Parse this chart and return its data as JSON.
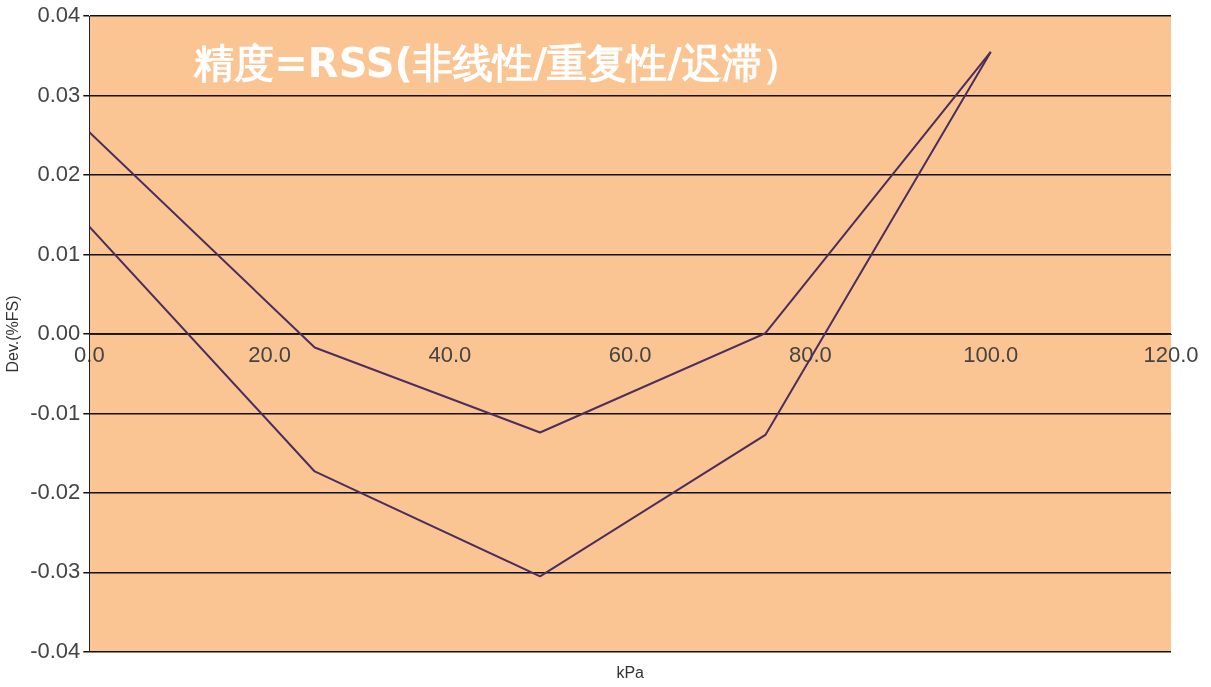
{
  "chart_data": {
    "type": "line",
    "title": "精度=RSS(非线性/重复性/迟滞）",
    "xlabel": "kPa",
    "ylabel": "Dev.(%FS)",
    "x": [
      0,
      25,
      50,
      75,
      100
    ],
    "series": [
      {
        "color": "#4b2d5e",
        "values": [
          0.0254,
          -0.0017,
          -0.0124,
          0.0001,
          0.0355
        ]
      },
      {
        "color": "#4b2d5e",
        "values": [
          0.0135,
          -0.0173,
          -0.0305,
          -0.0127,
          0.0355
        ]
      }
    ],
    "xlim": [
      0,
      120
    ],
    "xticks": [
      {
        "value": 0,
        "label": "0.0"
      },
      {
        "value": 20,
        "label": "20.0"
      },
      {
        "value": 40,
        "label": "40.0"
      },
      {
        "value": 60,
        "label": "60.0"
      },
      {
        "value": 80,
        "label": "80.0"
      },
      {
        "value": 100,
        "label": "100.0"
      },
      {
        "value": 120,
        "label": "120.0"
      }
    ],
    "ylim": [
      -0.04,
      0.04
    ],
    "yticks": [
      {
        "value": -0.04,
        "label": "-0.04"
      },
      {
        "value": -0.03,
        "label": "-0.03"
      },
      {
        "value": -0.02,
        "label": "-0.02"
      },
      {
        "value": -0.01,
        "label": "-0.01"
      },
      {
        "value": 0,
        "label": "0.00"
      },
      {
        "value": 0.01,
        "label": "0.01"
      },
      {
        "value": 0.02,
        "label": "0.02"
      },
      {
        "value": 0.03,
        "label": "0.03"
      },
      {
        "value": 0.04,
        "label": "0.04"
      }
    ],
    "grid": "y",
    "legend": false,
    "marker": "none",
    "line_style": "solid"
  }
}
